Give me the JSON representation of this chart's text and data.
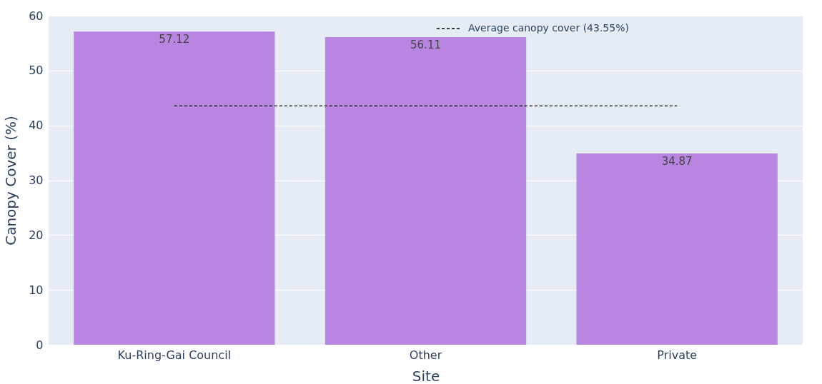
{
  "chart_data": {
    "type": "bar",
    "xlabel": "Site",
    "ylabel": "Canopy Cover (%)",
    "categories": [
      "Ku-Ring-Gai Council",
      "Other",
      "Private"
    ],
    "values": [
      57.12,
      56.11,
      34.87
    ],
    "color": "#b886e0",
    "ylim": [
      0,
      60
    ],
    "yticks": [
      0,
      10,
      20,
      30,
      40,
      50,
      60
    ],
    "grid": "y",
    "data_labels": true,
    "ref_lines": [
      {
        "axis": "y",
        "value": 43.55,
        "label": "Average canopy cover (43.55%)",
        "color": "#000000",
        "line_style": "dashed"
      }
    ]
  }
}
